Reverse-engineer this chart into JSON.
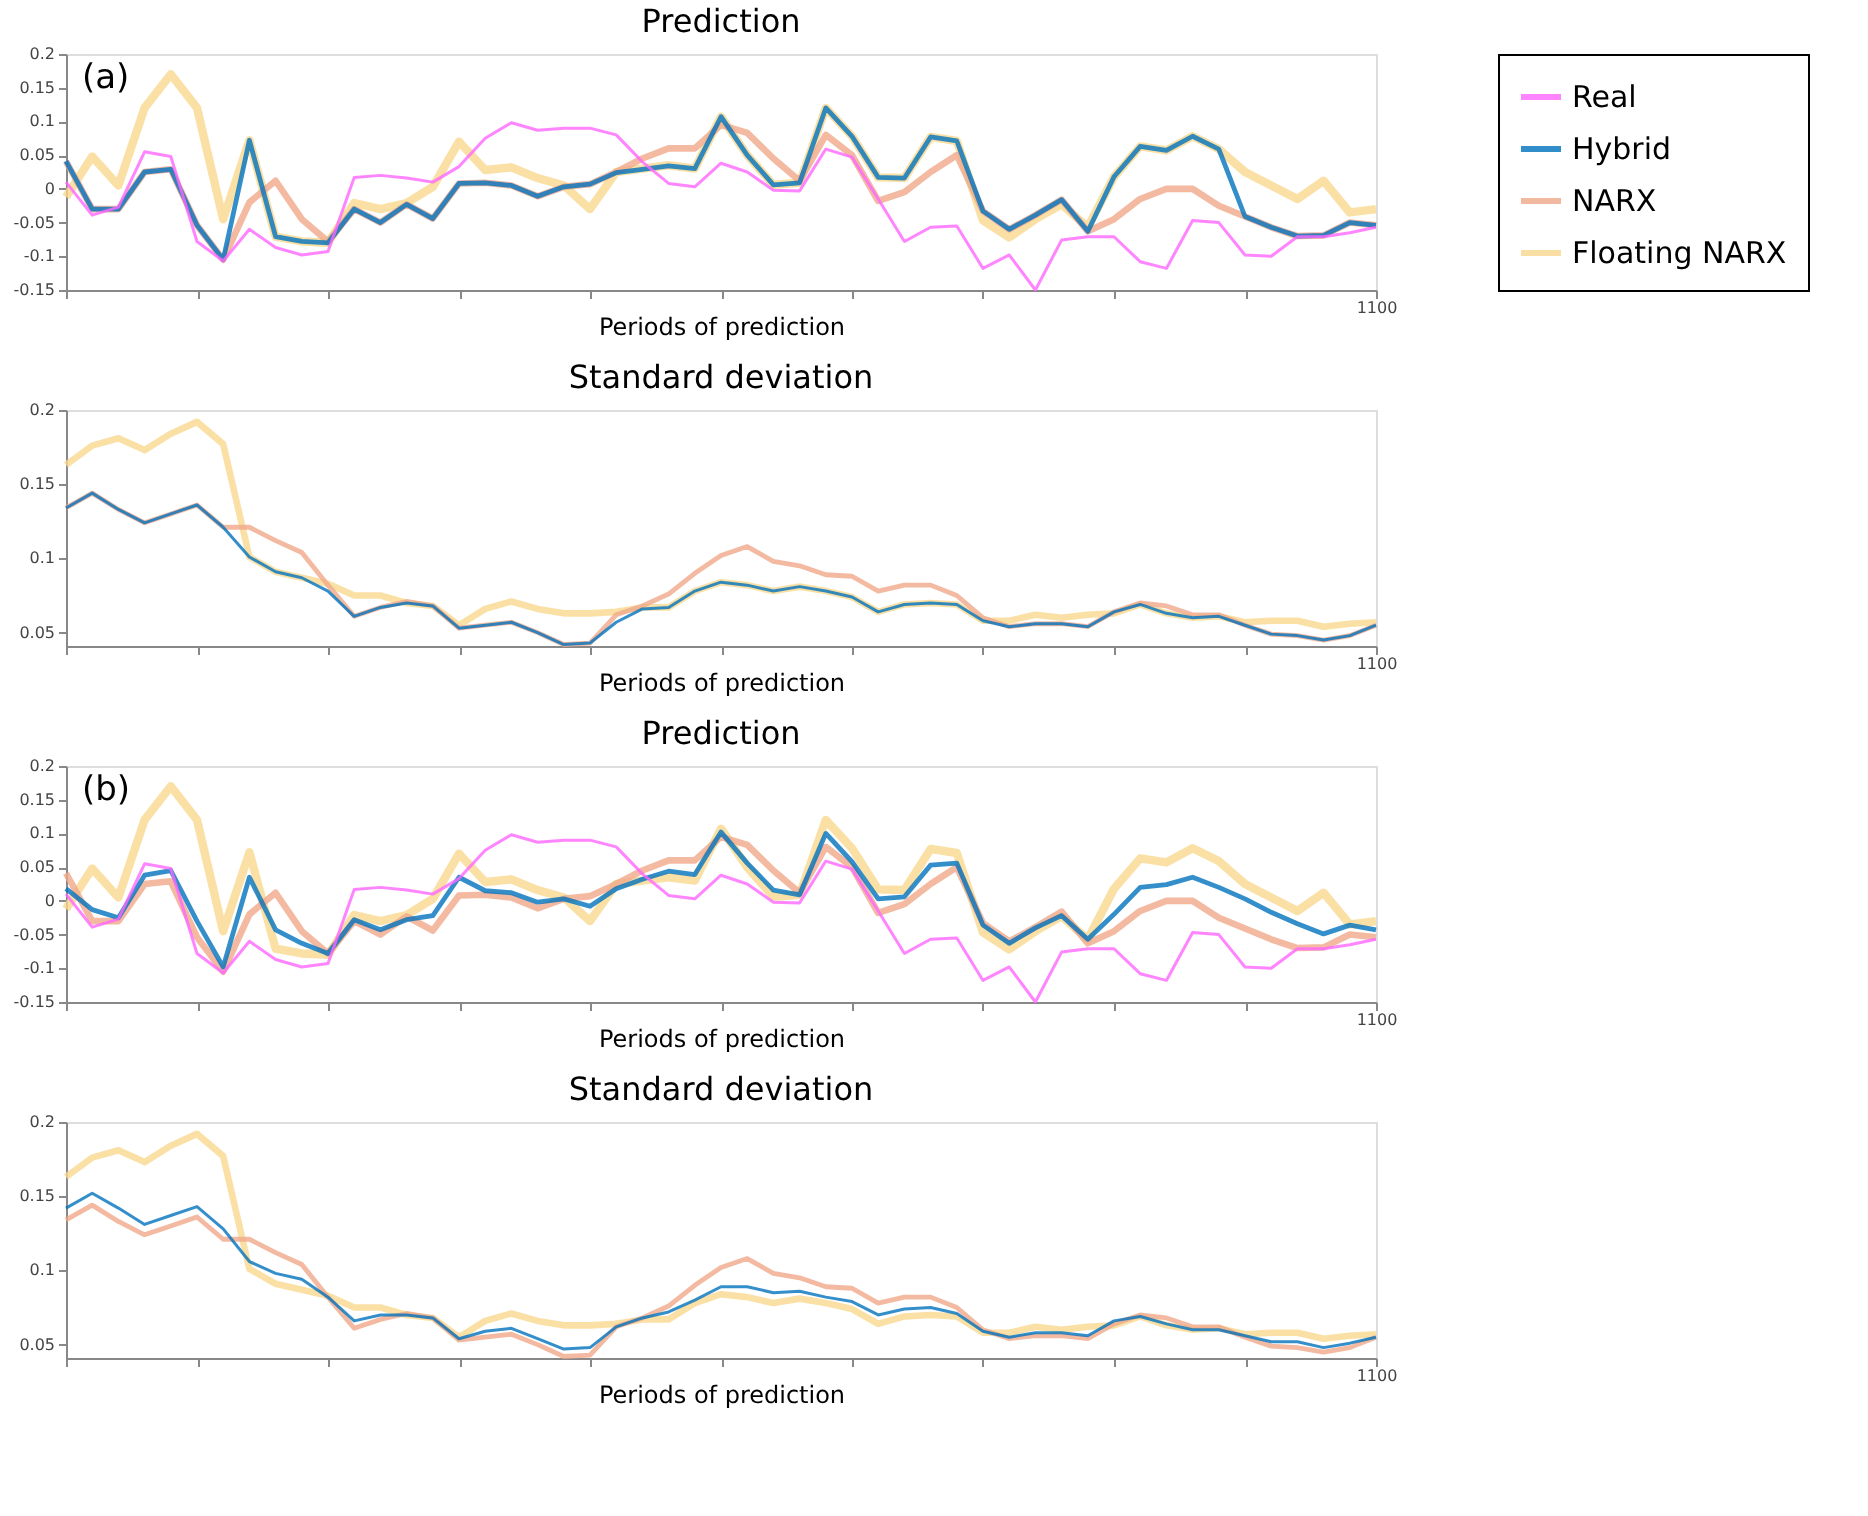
{
  "chart_data": [
    {
      "type": "line",
      "title": "Prediction",
      "xlabel": "Periods of prediction",
      "annotations": [
        "(a)"
      ],
      "legend": "right",
      "grid": false,
      "categories": [
        null,
        null,
        null,
        null,
        null,
        null,
        null,
        null,
        null,
        null,
        null,
        null,
        null,
        null,
        null,
        null,
        null,
        null,
        null,
        null,
        null,
        null,
        null,
        null,
        null,
        null,
        null,
        null,
        null,
        null,
        null,
        null,
        null,
        null,
        null,
        null,
        null,
        null,
        null,
        null,
        null,
        null,
        null,
        null,
        null,
        null,
        null,
        null,
        null,
        null,
        "1100"
      ],
      "ylim": [
        -0.15,
        0.2
      ],
      "yticks": [
        -0.15,
        -0.1,
        -0.05,
        0,
        0.05,
        0.1,
        0.15,
        0.2
      ],
      "series": [
        {
          "name": "Real",
          "color": "#ff66ff",
          "values": [
            0.01,
            -0.039,
            -0.027,
            0.055,
            0.048,
            -0.078,
            -0.107,
            -0.06,
            -0.087,
            -0.098,
            -0.093,
            0.017,
            0.02,
            0.016,
            0.01,
            0.033,
            0.075,
            0.098,
            0.087,
            0.09,
            0.09,
            0.08,
            0.04,
            0.008,
            0.003,
            0.038,
            0.025,
            -0.002,
            -0.003,
            0.059,
            0.047,
            -0.015,
            -0.078,
            -0.057,
            -0.055,
            -0.118,
            -0.098,
            -0.15,
            -0.076,
            -0.071,
            -0.071,
            -0.108,
            -0.118,
            -0.047,
            -0.05,
            -0.098,
            -0.1,
            -0.071,
            -0.071,
            -0.065,
            -0.057
          ]
        },
        {
          "name": "Hybrid",
          "color": "#0072bd",
          "values": [
            0.041,
            -0.03,
            -0.03,
            0.025,
            0.029,
            -0.054,
            -0.105,
            0.072,
            -0.071,
            -0.078,
            -0.08,
            -0.03,
            -0.05,
            -0.023,
            -0.044,
            0.008,
            0.009,
            0.005,
            -0.011,
            0.003,
            0.007,
            0.024,
            0.029,
            0.034,
            0.03,
            0.107,
            0.05,
            0.006,
            0.009,
            0.12,
            0.078,
            0.017,
            0.016,
            0.077,
            0.071,
            -0.033,
            -0.06,
            -0.039,
            -0.016,
            -0.063,
            0.018,
            0.063,
            0.057,
            0.078,
            0.059,
            -0.041,
            -0.057,
            -0.07,
            -0.069,
            -0.05,
            -0.054
          ]
        },
        {
          "name": "NARX",
          "color": "#f0a88a",
          "values": [
            0.041,
            -0.03,
            -0.03,
            0.025,
            0.029,
            -0.054,
            -0.105,
            -0.02,
            0.012,
            -0.045,
            -0.078,
            -0.03,
            -0.05,
            -0.023,
            -0.044,
            0.008,
            0.009,
            0.005,
            -0.011,
            0.003,
            0.007,
            0.025,
            0.045,
            0.06,
            0.06,
            0.095,
            0.083,
            0.045,
            0.012,
            0.08,
            0.05,
            -0.018,
            -0.005,
            0.025,
            0.05,
            -0.033,
            -0.06,
            -0.039,
            -0.016,
            -0.063,
            -0.045,
            -0.015,
            0.0,
            0.0,
            -0.025,
            -0.041,
            -0.057,
            -0.07,
            -0.069,
            -0.05,
            -0.054
          ]
        },
        {
          "name": "Floating NARX",
          "color": "#f9d88f",
          "values": [
            -0.012,
            0.048,
            0.005,
            0.12,
            0.17,
            0.12,
            -0.045,
            0.072,
            -0.071,
            -0.078,
            -0.08,
            -0.021,
            -0.03,
            -0.021,
            0.003,
            0.07,
            0.028,
            0.032,
            0.016,
            0.005,
            -0.03,
            0.025,
            0.03,
            0.035,
            0.03,
            0.107,
            0.05,
            0.006,
            0.009,
            0.12,
            0.078,
            0.017,
            0.016,
            0.077,
            0.071,
            -0.047,
            -0.072,
            -0.045,
            -0.023,
            -0.057,
            0.018,
            0.063,
            0.057,
            0.078,
            0.059,
            0.025,
            0.005,
            -0.015,
            0.012,
            -0.035,
            -0.03
          ]
        }
      ]
    },
    {
      "type": "line",
      "title": "Standard deviation",
      "xlabel": "Periods of prediction",
      "legend": "right",
      "grid": false,
      "categories": [
        null,
        null,
        null,
        null,
        null,
        null,
        null,
        null,
        null,
        null,
        null,
        null,
        null,
        null,
        null,
        null,
        null,
        null,
        null,
        null,
        null,
        null,
        null,
        null,
        null,
        null,
        null,
        null,
        null,
        null,
        null,
        null,
        null,
        null,
        null,
        null,
        null,
        null,
        null,
        null,
        null,
        null,
        null,
        null,
        null,
        null,
        null,
        null,
        null,
        null,
        "1100"
      ],
      "ylim": [
        0.041,
        0.2
      ],
      "yticks": [
        0.05,
        0.1,
        0.15,
        0.2
      ],
      "series": [
        {
          "name": "Hybrid",
          "color": "#0072bd",
          "values": [
            0.134,
            0.144,
            0.133,
            0.124,
            0.13,
            0.136,
            0.121,
            0.101,
            0.091,
            0.087,
            0.078,
            0.061,
            0.067,
            0.07,
            0.068,
            0.053,
            0.055,
            0.057,
            0.05,
            0.042,
            0.043,
            0.057,
            0.066,
            0.067,
            0.078,
            0.084,
            0.082,
            0.078,
            0.081,
            0.078,
            0.074,
            0.064,
            0.069,
            0.07,
            0.069,
            0.058,
            0.054,
            0.056,
            0.056,
            0.054,
            0.064,
            0.069,
            0.063,
            0.06,
            0.061,
            0.055,
            0.049,
            0.048,
            0.045,
            0.048,
            0.055
          ]
        },
        {
          "name": "NARX",
          "color": "#f0a88a",
          "values": [
            0.134,
            0.144,
            0.133,
            0.124,
            0.13,
            0.136,
            0.121,
            0.121,
            0.112,
            0.104,
            0.082,
            0.061,
            0.067,
            0.071,
            0.068,
            0.053,
            0.055,
            0.057,
            0.05,
            0.042,
            0.043,
            0.062,
            0.068,
            0.076,
            0.09,
            0.102,
            0.108,
            0.098,
            0.095,
            0.089,
            0.088,
            0.078,
            0.082,
            0.082,
            0.075,
            0.06,
            0.054,
            0.056,
            0.056,
            0.054,
            0.064,
            0.07,
            0.068,
            0.062,
            0.062,
            0.055,
            0.049,
            0.048,
            0.045,
            0.048,
            0.055
          ]
        },
        {
          "name": "Floating NARX",
          "color": "#f9d88f",
          "values": [
            0.163,
            0.176,
            0.181,
            0.173,
            0.184,
            0.192,
            0.177,
            0.101,
            0.091,
            0.087,
            0.083,
            0.075,
            0.075,
            0.07,
            0.068,
            0.055,
            0.066,
            0.071,
            0.066,
            0.063,
            0.063,
            0.064,
            0.067,
            0.067,
            0.078,
            0.084,
            0.082,
            0.078,
            0.081,
            0.078,
            0.074,
            0.064,
            0.069,
            0.07,
            0.069,
            0.058,
            0.058,
            0.062,
            0.06,
            0.062,
            0.063,
            0.069,
            0.063,
            0.06,
            0.061,
            0.057,
            0.058,
            0.058,
            0.054,
            0.056,
            0.057
          ]
        }
      ]
    },
    {
      "type": "line",
      "title": "Prediction",
      "xlabel": "Periods of prediction",
      "annotations": [
        "(b)"
      ],
      "legend": "right",
      "grid": false,
      "categories": [
        null,
        null,
        null,
        null,
        null,
        null,
        null,
        null,
        null,
        null,
        null,
        null,
        null,
        null,
        null,
        null,
        null,
        null,
        null,
        null,
        null,
        null,
        null,
        null,
        null,
        null,
        null,
        null,
        null,
        null,
        null,
        null,
        null,
        null,
        null,
        null,
        null,
        null,
        null,
        null,
        null,
        null,
        null,
        null,
        null,
        null,
        null,
        null,
        null,
        null,
        "1100"
      ],
      "ylim": [
        -0.15,
        0.2
      ],
      "yticks": [
        -0.15,
        -0.1,
        -0.05,
        0,
        0.05,
        0.1,
        0.15,
        0.2
      ],
      "series": [
        {
          "name": "Real",
          "color": "#ff66ff",
          "values": [
            0.01,
            -0.039,
            -0.027,
            0.055,
            0.048,
            -0.078,
            -0.107,
            -0.06,
            -0.087,
            -0.098,
            -0.093,
            0.017,
            0.02,
            0.016,
            0.01,
            0.033,
            0.075,
            0.098,
            0.087,
            0.09,
            0.09,
            0.08,
            0.04,
            0.008,
            0.003,
            0.038,
            0.025,
            -0.002,
            -0.003,
            0.059,
            0.047,
            -0.015,
            -0.078,
            -0.057,
            -0.055,
            -0.118,
            -0.098,
            -0.15,
            -0.076,
            -0.071,
            -0.071,
            -0.108,
            -0.118,
            -0.047,
            -0.05,
            -0.098,
            -0.1,
            -0.071,
            -0.071,
            -0.065,
            -0.057
          ]
        },
        {
          "name": "Hybrid",
          "color": "#0072bd",
          "values": [
            0.018,
            -0.013,
            -0.025,
            0.038,
            0.045,
            -0.03,
            -0.098,
            0.035,
            -0.043,
            -0.063,
            -0.078,
            -0.028,
            -0.043,
            -0.028,
            -0.022,
            0.035,
            0.015,
            0.012,
            -0.002,
            0.003,
            -0.008,
            0.018,
            0.032,
            0.044,
            0.039,
            0.102,
            0.056,
            0.016,
            0.009,
            0.1,
            0.058,
            0.003,
            0.006,
            0.053,
            0.056,
            -0.036,
            -0.063,
            -0.04,
            -0.022,
            -0.057,
            -0.02,
            0.02,
            0.024,
            0.035,
            0.02,
            0.003,
            -0.017,
            -0.034,
            -0.049,
            -0.036,
            -0.043
          ]
        },
        {
          "name": "NARX",
          "color": "#f0a88a",
          "values": [
            0.041,
            -0.03,
            -0.03,
            0.025,
            0.029,
            -0.054,
            -0.105,
            -0.02,
            0.012,
            -0.045,
            -0.078,
            -0.03,
            -0.05,
            -0.023,
            -0.044,
            0.008,
            0.009,
            0.005,
            -0.011,
            0.003,
            0.007,
            0.025,
            0.045,
            0.06,
            0.06,
            0.095,
            0.083,
            0.045,
            0.012,
            0.08,
            0.05,
            -0.018,
            -0.005,
            0.025,
            0.05,
            -0.033,
            -0.06,
            -0.039,
            -0.016,
            -0.063,
            -0.045,
            -0.015,
            0.0,
            0.0,
            -0.025,
            -0.041,
            -0.057,
            -0.07,
            -0.069,
            -0.05,
            -0.054
          ]
        },
        {
          "name": "Floating NARX",
          "color": "#f9d88f",
          "values": [
            -0.012,
            0.048,
            0.005,
            0.12,
            0.17,
            0.12,
            -0.045,
            0.072,
            -0.071,
            -0.078,
            -0.08,
            -0.021,
            -0.03,
            -0.021,
            0.003,
            0.07,
            0.028,
            0.032,
            0.016,
            0.005,
            -0.03,
            0.025,
            0.03,
            0.035,
            0.03,
            0.107,
            0.05,
            0.006,
            0.009,
            0.12,
            0.078,
            0.017,
            0.016,
            0.077,
            0.071,
            -0.047,
            -0.072,
            -0.045,
            -0.023,
            -0.057,
            0.018,
            0.063,
            0.057,
            0.078,
            0.059,
            0.025,
            0.005,
            -0.015,
            0.012,
            -0.035,
            -0.03
          ]
        }
      ]
    },
    {
      "type": "line",
      "title": "Standard deviation",
      "xlabel": "Periods of prediction",
      "legend": "right",
      "grid": false,
      "categories": [
        null,
        null,
        null,
        null,
        null,
        null,
        null,
        null,
        null,
        null,
        null,
        null,
        null,
        null,
        null,
        null,
        null,
        null,
        null,
        null,
        null,
        null,
        null,
        null,
        null,
        null,
        null,
        null,
        null,
        null,
        null,
        null,
        null,
        null,
        null,
        null,
        null,
        null,
        null,
        null,
        null,
        null,
        null,
        null,
        null,
        null,
        null,
        null,
        null,
        null,
        "1100"
      ],
      "ylim": [
        0.041,
        0.2
      ],
      "yticks": [
        0.05,
        0.1,
        0.15,
        0.2
      ],
      "series": [
        {
          "name": "Hybrid",
          "color": "#0072bd",
          "values": [
            0.142,
            0.152,
            0.142,
            0.131,
            0.137,
            0.143,
            0.128,
            0.106,
            0.098,
            0.094,
            0.082,
            0.066,
            0.07,
            0.07,
            0.068,
            0.054,
            0.059,
            0.061,
            0.054,
            0.047,
            0.048,
            0.062,
            0.068,
            0.072,
            0.08,
            0.089,
            0.089,
            0.085,
            0.086,
            0.082,
            0.079,
            0.07,
            0.074,
            0.075,
            0.071,
            0.059,
            0.055,
            0.058,
            0.058,
            0.056,
            0.066,
            0.069,
            0.064,
            0.06,
            0.06,
            0.056,
            0.052,
            0.052,
            0.048,
            0.051,
            0.055
          ]
        },
        {
          "name": "NARX",
          "color": "#f0a88a",
          "values": [
            0.134,
            0.144,
            0.133,
            0.124,
            0.13,
            0.136,
            0.121,
            0.121,
            0.112,
            0.104,
            0.082,
            0.061,
            0.067,
            0.071,
            0.068,
            0.053,
            0.055,
            0.057,
            0.05,
            0.042,
            0.043,
            0.062,
            0.068,
            0.076,
            0.09,
            0.102,
            0.108,
            0.098,
            0.095,
            0.089,
            0.088,
            0.078,
            0.082,
            0.082,
            0.075,
            0.06,
            0.054,
            0.056,
            0.056,
            0.054,
            0.064,
            0.07,
            0.068,
            0.062,
            0.062,
            0.055,
            0.049,
            0.048,
            0.045,
            0.048,
            0.055
          ]
        },
        {
          "name": "Floating NARX",
          "color": "#f9d88f",
          "values": [
            0.163,
            0.176,
            0.181,
            0.173,
            0.184,
            0.192,
            0.177,
            0.101,
            0.091,
            0.087,
            0.083,
            0.075,
            0.075,
            0.07,
            0.068,
            0.055,
            0.066,
            0.071,
            0.066,
            0.063,
            0.063,
            0.064,
            0.067,
            0.067,
            0.078,
            0.084,
            0.082,
            0.078,
            0.081,
            0.078,
            0.074,
            0.064,
            0.069,
            0.07,
            0.069,
            0.058,
            0.058,
            0.062,
            0.06,
            0.062,
            0.063,
            0.069,
            0.063,
            0.06,
            0.061,
            0.057,
            0.058,
            0.058,
            0.054,
            0.056,
            0.057
          ]
        }
      ]
    }
  ]
}
